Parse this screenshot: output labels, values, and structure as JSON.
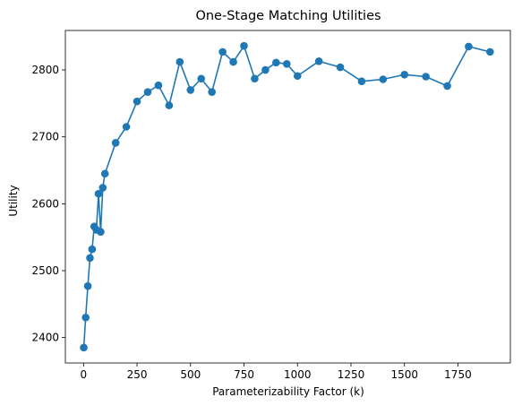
{
  "chart_data": {
    "type": "line",
    "title": "One-Stage Matching Utilities",
    "xlabel": "Parameterizability Factor (k)",
    "ylabel": "Utility",
    "xlim": [
      -85,
      1995
    ],
    "ylim": [
      2362,
      2859
    ],
    "x_ticks": [
      0,
      250,
      500,
      750,
      1000,
      1250,
      1500,
      1750
    ],
    "y_ticks": [
      2400,
      2500,
      2600,
      2700,
      2800
    ],
    "grid": false,
    "legend": "none",
    "marker": "circle",
    "series": [
      {
        "color": "#1f77b4",
        "x": [
          1,
          10,
          20,
          30,
          40,
          50,
          60,
          70,
          80,
          90,
          100,
          150,
          200,
          250,
          300,
          350,
          400,
          450,
          500,
          550,
          600,
          650,
          700,
          750,
          800,
          850,
          900,
          950,
          1000,
          1100,
          1200,
          1300,
          1400,
          1500,
          1600,
          1700,
          1800,
          1900
        ],
        "y": [
          2385,
          2430,
          2477,
          2519,
          2532,
          2566,
          2561,
          2615,
          2558,
          2624,
          2645,
          2691,
          2715,
          2753,
          2767,
          2777,
          2747,
          2812,
          2770,
          2787,
          2767,
          2827,
          2812,
          2836,
          2787,
          2800,
          2811,
          2809,
          2791,
          2813,
          2804,
          2783,
          2786,
          2793,
          2790,
          2776,
          2835,
          2827
        ]
      }
    ]
  }
}
